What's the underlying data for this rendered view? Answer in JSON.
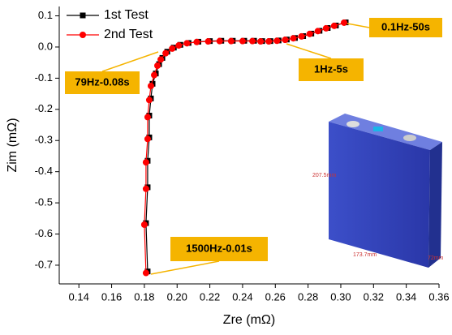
{
  "chart_data": {
    "type": "line",
    "xlabel": "Zre (mΩ)",
    "ylabel": "Zim (mΩ)",
    "xlim": [
      0.128,
      0.36
    ],
    "ylim": [
      -0.76,
      0.13
    ],
    "xticks": [
      0.14,
      0.16,
      0.18,
      {
        "value": 0.2,
        "label": "0.20"
      },
      0.22,
      0.24,
      0.26,
      0.28,
      {
        "value": 0.3,
        "label": "0.30"
      },
      0.32,
      0.34,
      0.36
    ],
    "yticks": [
      0.1,
      {
        "value": 0,
        "label": "0.0"
      },
      -0.1,
      -0.2,
      -0.3,
      -0.4,
      -0.5,
      -0.6,
      -0.7
    ],
    "legend": "top-left",
    "series": [
      {
        "name": "1st Test",
        "color": "#000000",
        "marker": "square",
        "x": [
          0.182,
          0.181,
          0.182,
          0.182,
          0.183,
          0.183,
          0.184,
          0.185,
          0.187,
          0.189,
          0.191,
          0.194,
          0.198,
          0.202,
          0.207,
          0.213,
          0.22,
          0.227,
          0.234,
          0.241,
          0.247,
          0.252,
          0.257,
          0.262,
          0.267,
          0.272,
          0.277,
          0.282,
          0.287,
          0.292,
          0.297,
          0.303
        ],
        "y": [
          -0.72,
          -0.565,
          -0.45,
          -0.365,
          -0.29,
          -0.22,
          -0.165,
          -0.118,
          -0.085,
          -0.055,
          -0.035,
          -0.015,
          -0.002,
          0.007,
          0.013,
          0.017,
          0.019,
          0.02,
          0.02,
          0.02,
          0.02,
          0.019,
          0.019,
          0.021,
          0.024,
          0.029,
          0.035,
          0.043,
          0.052,
          0.061,
          0.069,
          0.079
        ]
      },
      {
        "name": "2nd Test",
        "color": "#ff0000",
        "marker": "circle",
        "x": [
          0.181,
          0.18,
          0.181,
          0.181,
          0.182,
          0.182,
          0.183,
          0.184,
          0.186,
          0.188,
          0.19,
          0.193,
          0.197,
          0.201,
          0.206,
          0.212,
          0.219,
          0.226,
          0.233,
          0.24,
          0.246,
          0.251,
          0.256,
          0.261,
          0.266,
          0.271,
          0.276,
          0.281,
          0.286,
          0.291,
          0.296,
          0.302
        ],
        "y": [
          -0.725,
          -0.57,
          -0.455,
          -0.37,
          -0.295,
          -0.225,
          -0.17,
          -0.125,
          -0.09,
          -0.06,
          -0.04,
          -0.02,
          -0.005,
          0.005,
          0.012,
          0.016,
          0.018,
          0.019,
          0.019,
          0.019,
          0.019,
          0.018,
          0.018,
          0.02,
          0.023,
          0.028,
          0.034,
          0.042,
          0.051,
          0.06,
          0.068,
          0.078
        ]
      }
    ],
    "annotations": [
      "79Hz-0.08s",
      "0.1Hz-50s",
      "1Hz-5s",
      "1500Hz-0.01s"
    ],
    "inset_labels": [
      "207.5mm",
      "173.7mm",
      "72mm"
    ]
  }
}
